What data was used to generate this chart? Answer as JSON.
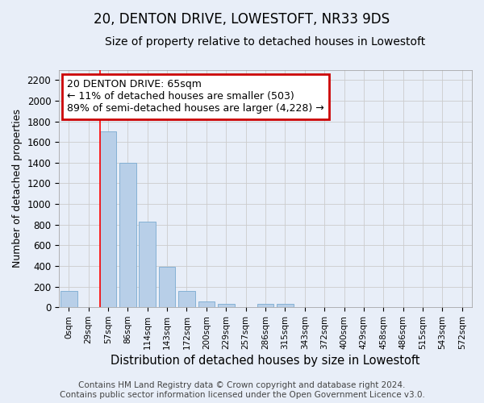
{
  "title": "20, DENTON DRIVE, LOWESTOFT, NR33 9DS",
  "subtitle": "Size of property relative to detached houses in Lowestoft",
  "xlabel": "Distribution of detached houses by size in Lowestoft",
  "ylabel": "Number of detached properties",
  "categories": [
    "0sqm",
    "29sqm",
    "57sqm",
    "86sqm",
    "114sqm",
    "143sqm",
    "172sqm",
    "200sqm",
    "229sqm",
    "257sqm",
    "286sqm",
    "315sqm",
    "343sqm",
    "372sqm",
    "400sqm",
    "429sqm",
    "458sqm",
    "486sqm",
    "515sqm",
    "543sqm",
    "572sqm"
  ],
  "values": [
    155,
    0,
    1700,
    1400,
    830,
    390,
    160,
    60,
    30,
    0,
    30,
    30,
    0,
    0,
    0,
    0,
    0,
    0,
    0,
    0,
    0
  ],
  "bar_color": "#b8cfe8",
  "bar_edge_color": "#7aaad0",
  "grid_color": "#cccccc",
  "background_color": "#e8eef8",
  "plot_bg_color": "#e8eef8",
  "red_line_x": 2,
  "annotation_text": "20 DENTON DRIVE: 65sqm\n← 11% of detached houses are smaller (503)\n89% of semi-detached houses are larger (4,228) →",
  "annotation_box_color": "#ffffff",
  "annotation_box_edge": "#cc0000",
  "footer": "Contains HM Land Registry data © Crown copyright and database right 2024.\nContains public sector information licensed under the Open Government Licence v3.0.",
  "ylim": [
    0,
    2300
  ],
  "yticks": [
    0,
    200,
    400,
    600,
    800,
    1000,
    1200,
    1400,
    1600,
    1800,
    2000,
    2200
  ],
  "title_fontsize": 12,
  "subtitle_fontsize": 10,
  "xlabel_fontsize": 10.5,
  "ylabel_fontsize": 9,
  "footer_fontsize": 7.5,
  "annot_fontsize": 9
}
